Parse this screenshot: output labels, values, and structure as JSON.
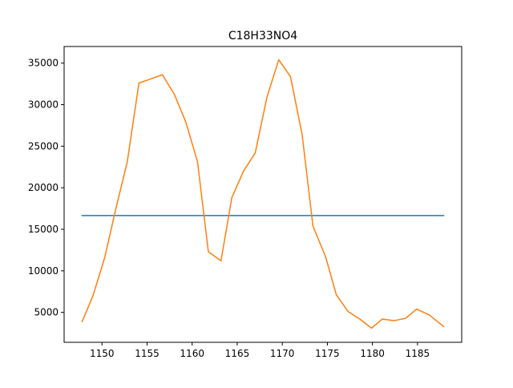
{
  "chart_data": {
    "type": "line",
    "title": "C18H33NO4",
    "xlabel": "",
    "ylabel": "",
    "xlim": [
      1145.8,
      1189.9
    ],
    "ylim": [
      1400,
      37000
    ],
    "xticks": [
      1150,
      1155,
      1160,
      1165,
      1170,
      1175,
      1180,
      1185
    ],
    "yticks": [
      5000,
      10000,
      15000,
      20000,
      25000,
      30000,
      35000
    ],
    "grid": false,
    "legend": "none",
    "series": [
      {
        "color": "#1f77b4",
        "x": [
          1147.8,
          1187.9
        ],
        "y": [
          16650,
          16650
        ]
      },
      {
        "color": "#ff7f0e",
        "x": [
          1147.8,
          1149.0,
          1150.3,
          1151.5,
          1152.8,
          1154.1,
          1155.4,
          1156.7,
          1158.0,
          1159.3,
          1160.6,
          1161.8,
          1163.2,
          1164.4,
          1165.7,
          1167.0,
          1168.3,
          1169.6,
          1170.9,
          1172.2,
          1173.4,
          1174.8,
          1176.0,
          1177.3,
          1178.6,
          1179.9,
          1181.1,
          1182.4,
          1183.7,
          1184.9,
          1186.3,
          1187.9
        ],
        "y": [
          3900,
          7000,
          11600,
          17300,
          23100,
          32600,
          33100,
          33600,
          31300,
          27900,
          23100,
          12300,
          11200,
          18800,
          22000,
          24200,
          30900,
          35400,
          33400,
          26400,
          15400,
          11700,
          7100,
          5100,
          4200,
          3100,
          4200,
          4000,
          4300,
          5400,
          4700,
          3300
        ]
      }
    ]
  }
}
